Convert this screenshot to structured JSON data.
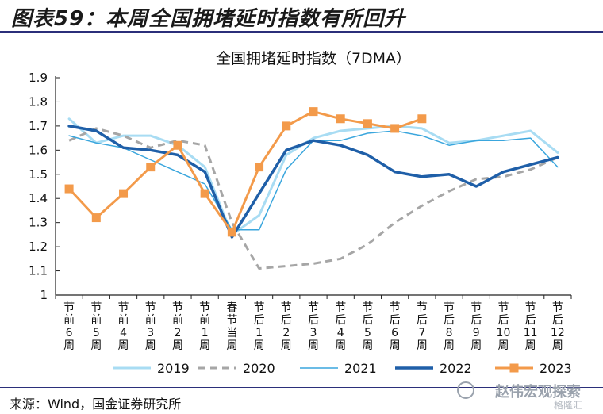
{
  "figure_title": "图表59：本周全国拥堵延时指数有所回升",
  "source": "来源：Wind，国金证券研究所",
  "watermark": "赵伟宏观探索",
  "watermark_sub": "格隆汇",
  "colors": {
    "2019": "#a8dcf3",
    "2020": "#a6a6a6",
    "2021": "#3aa6dd",
    "2022": "#1f5fa8",
    "2023": "#f39a4a",
    "rule": "#2b2f7a"
  },
  "chart_data": {
    "type": "line",
    "title": "全国拥堵延时指数（7DMA）",
    "xlabel": "",
    "ylabel": "",
    "ylim": [
      1.0,
      1.9
    ],
    "yticks": [
      "1",
      "1.1",
      "1.2",
      "1.3",
      "1.4",
      "1.5",
      "1.6",
      "1.7",
      "1.8",
      "1.9"
    ],
    "categories": [
      "节前6周",
      "节前5周",
      "节前4周",
      "节前3周",
      "节前2周",
      "节前1周",
      "春节当周",
      "节后1周",
      "节后2周",
      "节后3周",
      "节后4周",
      "节后5周",
      "节后6周",
      "节后7周",
      "节后8周",
      "节后9周",
      "节后10周",
      "节后11周",
      "节后12周"
    ],
    "legend_position": "bottom",
    "series": [
      {
        "name": "2019",
        "style": "solid",
        "width": 3,
        "values": [
          1.73,
          1.63,
          1.66,
          1.66,
          1.62,
          1.53,
          1.25,
          1.33,
          1.58,
          1.65,
          1.68,
          1.69,
          1.7,
          1.69,
          1.63,
          1.64,
          1.66,
          1.68,
          1.59
        ]
      },
      {
        "name": "2020",
        "style": "dashed",
        "width": 3,
        "values": [
          1.64,
          1.69,
          1.66,
          1.61,
          1.64,
          1.62,
          1.3,
          1.11,
          1.12,
          1.13,
          1.15,
          1.21,
          1.3,
          1.37,
          1.43,
          1.48,
          1.49,
          1.52,
          1.57
        ]
      },
      {
        "name": "2021",
        "style": "solid",
        "width": 1.5,
        "values": [
          1.66,
          1.63,
          1.61,
          1.56,
          1.51,
          1.46,
          1.27,
          1.27,
          1.52,
          1.64,
          1.64,
          1.67,
          1.68,
          1.66,
          1.62,
          1.64,
          1.64,
          1.65,
          1.53
        ]
      },
      {
        "name": "2022",
        "style": "solid",
        "width": 3.5,
        "values": [
          1.7,
          1.68,
          1.61,
          1.6,
          1.58,
          1.51,
          1.24,
          1.42,
          1.6,
          1.64,
          1.62,
          1.58,
          1.51,
          1.49,
          1.5,
          1.45,
          1.51,
          1.54,
          1.57
        ]
      },
      {
        "name": "2023",
        "style": "marker",
        "width": 3,
        "values": [
          1.44,
          1.32,
          1.42,
          1.53,
          1.62,
          1.42,
          1.26,
          1.53,
          1.7,
          1.76,
          1.73,
          1.71,
          1.69,
          1.73,
          null,
          null,
          null,
          null,
          null
        ]
      }
    ]
  }
}
